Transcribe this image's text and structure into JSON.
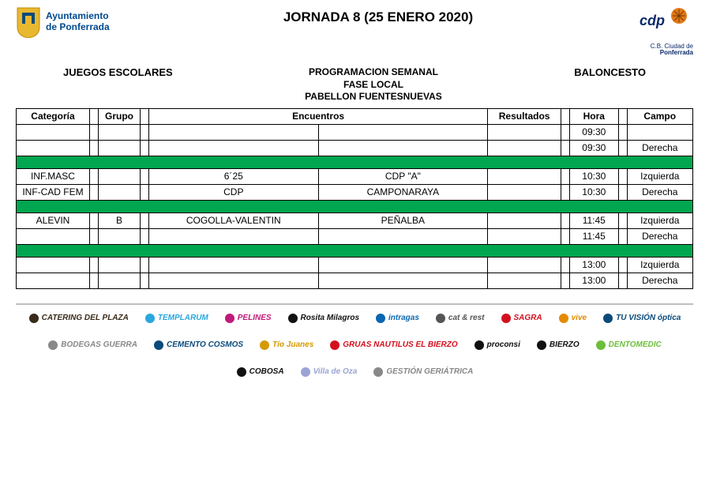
{
  "header": {
    "ayto_line1": "Ayuntamiento",
    "ayto_line2": "de Ponferrada",
    "title": "JORNADA 8 (25 ENERO 2020)",
    "cdp_line1": "C.B. Ciudad de",
    "cdp_line2": "Ponferrada"
  },
  "subheader": {
    "left": "JUEGOS ESCOLARES",
    "right": "BALONCESTO",
    "center1": "PROGRAMACION SEMANAL",
    "center2": "FASE LOCAL",
    "center3": "PABELLON FUENTESNUEVAS"
  },
  "table": {
    "columns": {
      "categoria": "Categoría",
      "grupo": "Grupo",
      "encuentros": "Encuentros",
      "resultados": "Resultados",
      "hora": "Hora",
      "campo": "Campo"
    },
    "green_color": "#00a650",
    "rows": [
      {
        "type": "data",
        "categoria": "",
        "grupo": "",
        "enc1": "",
        "enc2": "",
        "res": "",
        "hora": "09:30",
        "campo": ""
      },
      {
        "type": "data",
        "categoria": "",
        "grupo": "",
        "enc1": "",
        "enc2": "",
        "res": "",
        "hora": "09:30",
        "campo": "Derecha"
      },
      {
        "type": "green"
      },
      {
        "type": "data",
        "categoria": "INF.MASC",
        "grupo": "",
        "enc1": "6´25",
        "enc2": "CDP \"A\"",
        "res": "",
        "hora": "10:30",
        "campo": "Izquierda"
      },
      {
        "type": "data",
        "categoria": "INF-CAD FEM",
        "grupo": "",
        "enc1": "CDP",
        "enc2": "CAMPONARAYA",
        "res": "",
        "hora": "10:30",
        "campo": "Derecha"
      },
      {
        "type": "green"
      },
      {
        "type": "data",
        "categoria": "ALEVIN",
        "grupo": "B",
        "enc1": "COGOLLA-VALENTIN",
        "enc2": "PEÑALBA",
        "res": "",
        "hora": "11:45",
        "campo": "Izquierda"
      },
      {
        "type": "data",
        "categoria": "",
        "grupo": "",
        "enc1": "",
        "enc2": "",
        "res": "",
        "hora": "11:45",
        "campo": "Derecha"
      },
      {
        "type": "green"
      },
      {
        "type": "data",
        "categoria": "",
        "grupo": "",
        "enc1": "",
        "enc2": "",
        "res": "",
        "hora": "13:00",
        "campo": "Izquierda"
      },
      {
        "type": "data",
        "categoria": "",
        "grupo": "",
        "enc1": "",
        "enc2": "",
        "res": "",
        "hora": "13:00",
        "campo": "Derecha"
      }
    ]
  },
  "sponsors": [
    {
      "name": "CATERING DEL PLAZA",
      "color": "#3a2a1a"
    },
    {
      "name": "TEMPLARUM",
      "color": "#2aa7df"
    },
    {
      "name": "PELINES",
      "color": "#c01a7a"
    },
    {
      "name": "Rosita Milagros",
      "color": "#111111"
    },
    {
      "name": "intragas",
      "color": "#0a66b0"
    },
    {
      "name": "cat & rest",
      "color": "#555555"
    },
    {
      "name": "SAGRA",
      "color": "#d4101e"
    },
    {
      "name": "vive",
      "color": "#e58a00"
    },
    {
      "name": "TU VISIÓN óptica",
      "color": "#0a4a7a"
    },
    {
      "name": "BODEGAS GUERRA",
      "color": "#888888"
    },
    {
      "name": "CEMENTO COSMOS",
      "color": "#0a4a7a"
    },
    {
      "name": "Tío Juanes",
      "color": "#d49a00"
    },
    {
      "name": "GRUAS NAUTILUS EL BIERZO",
      "color": "#d4101e"
    },
    {
      "name": "proconsi",
      "color": "#111111"
    },
    {
      "name": "BIERZO",
      "color": "#111111"
    },
    {
      "name": "DENTOMEDIC",
      "color": "#6cbf3a"
    },
    {
      "name": "COBOSA",
      "color": "#111111"
    },
    {
      "name": "Villa de Oza",
      "color": "#9aa4d4"
    },
    {
      "name": "GESTIÓN GERIÁTRICA",
      "color": "#888888"
    }
  ]
}
